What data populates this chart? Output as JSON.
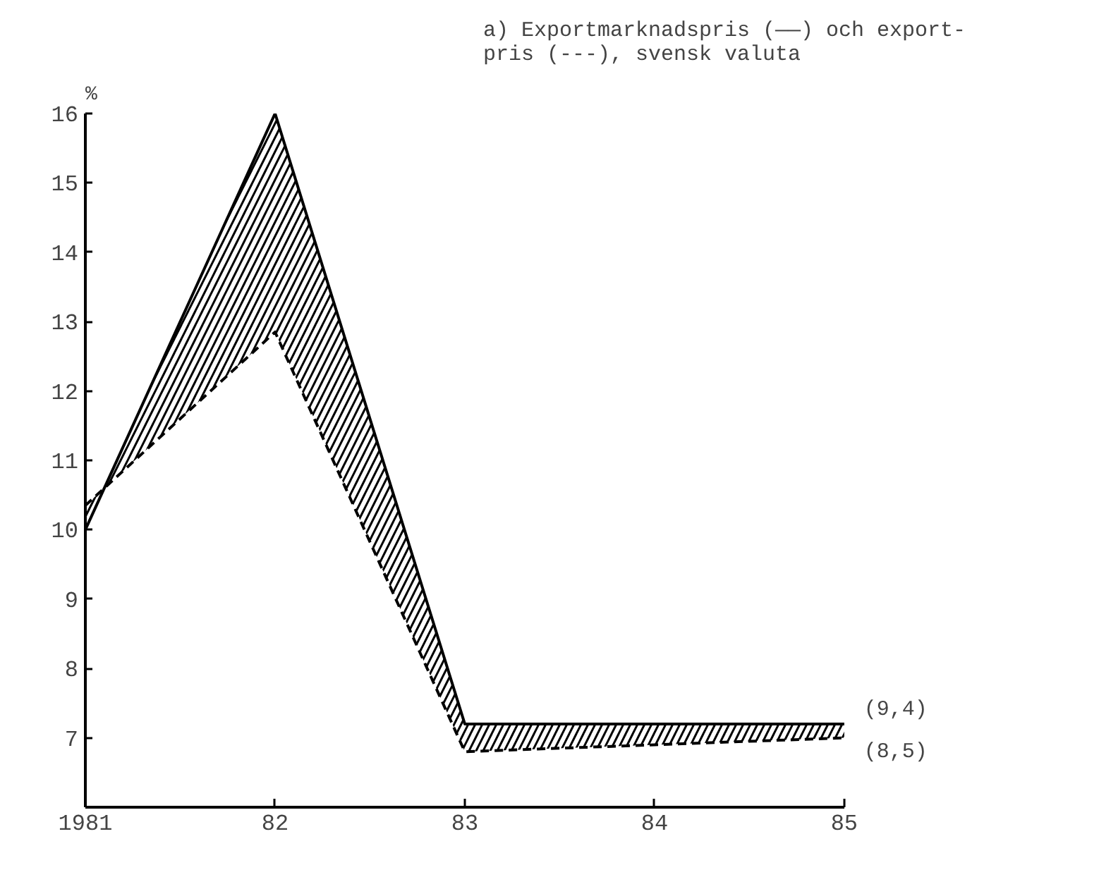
{
  "chart_data": {
    "type": "line",
    "title": "a) Exportmarknadspris (——) och export-\npris (---), svensk valuta",
    "ylabel": "%",
    "x": [
      1981,
      1982,
      1983,
      1984,
      1985
    ],
    "series": [
      {
        "color": "#000000",
        "line_style": "solid",
        "values": [
          10.0,
          16.0,
          7.2,
          7.2,
          7.2
        ],
        "lower": [
          10.35,
          12.85,
          6.8,
          6.9,
          7.0
        ],
        "upper": [
          10.0,
          16.0,
          7.2,
          7.2,
          7.2
        ]
      },
      {
        "color": "#000000",
        "line_style": "dashed",
        "values": [
          10.35,
          12.85,
          6.8,
          6.9,
          7.0
        ]
      }
    ],
    "xlim": [
      1981,
      1985
    ],
    "xticks": [
      1981,
      {
        "value": 1982,
        "label": "82"
      },
      {
        "value": 1983,
        "label": "83"
      },
      {
        "value": 1984,
        "label": "84"
      },
      {
        "value": 1985,
        "label": "85"
      }
    ],
    "ylim": [
      6,
      16
    ],
    "yticks": [
      7,
      8,
      9,
      10,
      11,
      12,
      13,
      14,
      15,
      16
    ],
    "annotations": [
      {
        "text": "(9,4)",
        "x": 1985,
        "y": 7.2
      },
      {
        "text": "(8,5)",
        "x": 1985,
        "y": 7.0
      }
    ],
    "grid": false,
    "marker": "none"
  }
}
